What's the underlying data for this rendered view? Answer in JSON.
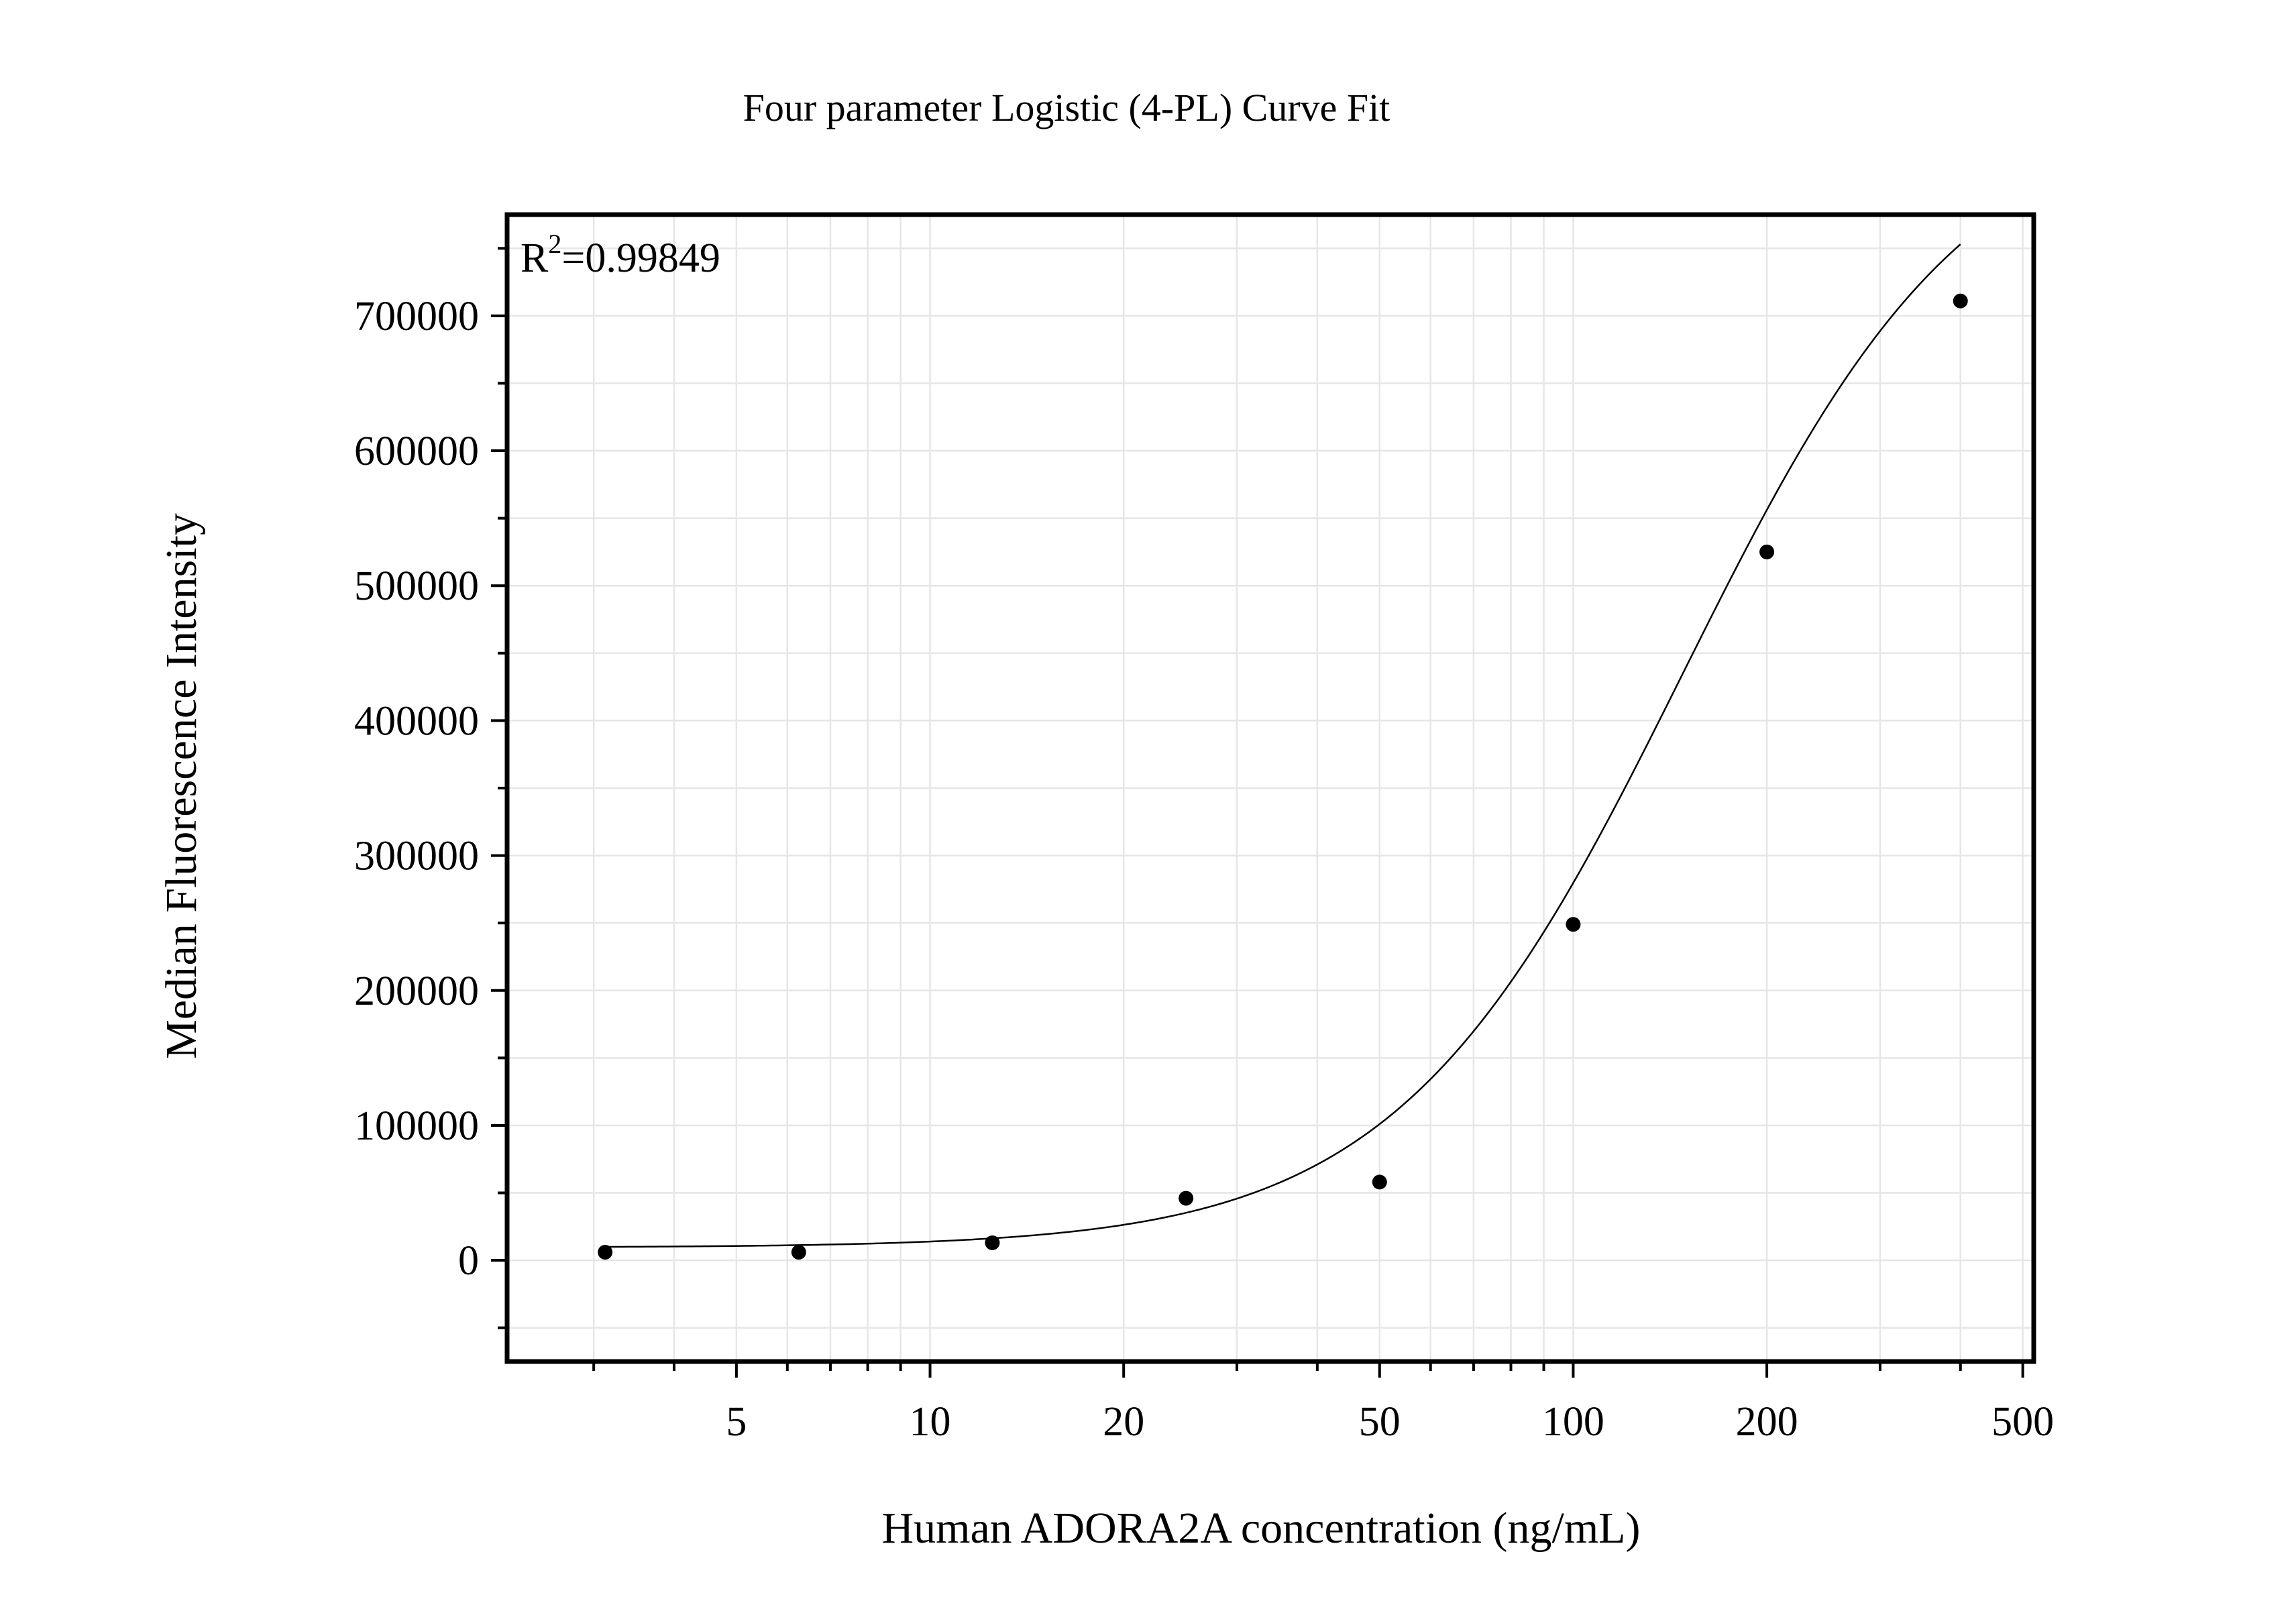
{
  "chart_data": {
    "type": "scatter",
    "title": "Four parameter Logistic (4-PL) Curve Fit",
    "xlabel": "Human ADORA2A concentration (ng/mL)",
    "ylabel": "Median Fluorescence Intensity",
    "x_scale": "log",
    "xlim": [
      2.2,
      520
    ],
    "ylim": [
      -75000,
      775000
    ],
    "x_ticks": [
      5,
      10,
      20,
      50,
      100,
      200,
      500
    ],
    "x_tick_labels": [
      "5",
      "10",
      "20",
      "50",
      "100",
      "200",
      "500"
    ],
    "y_ticks": [
      0,
      100000,
      200000,
      300000,
      400000,
      500000,
      600000,
      700000
    ],
    "y_tick_labels": [
      "0",
      "100000",
      "200000",
      "300000",
      "400000",
      "500000",
      "600000",
      "700000"
    ],
    "grid": true,
    "annotation": {
      "base": "R",
      "sup": "2",
      "rest": "=0.99849"
    },
    "series": [
      {
        "type": "scatter",
        "x": [
          3.125,
          6.25,
          12.5,
          25,
          50,
          100,
          200,
          400
        ],
        "y": [
          6000,
          6000,
          13000,
          46000,
          58000,
          249000,
          525000,
          711000
        ]
      },
      {
        "type": "line",
        "fit": "4PL",
        "params": {
          "bottom": 9500,
          "top": 860000,
          "ec50": 148,
          "hill": 1.95
        },
        "x_range": [
          3.125,
          400
        ]
      }
    ],
    "colors": {
      "points": "#000000",
      "curve": "#000000",
      "grid": "#e6e6e6",
      "frame": "#000000"
    }
  }
}
